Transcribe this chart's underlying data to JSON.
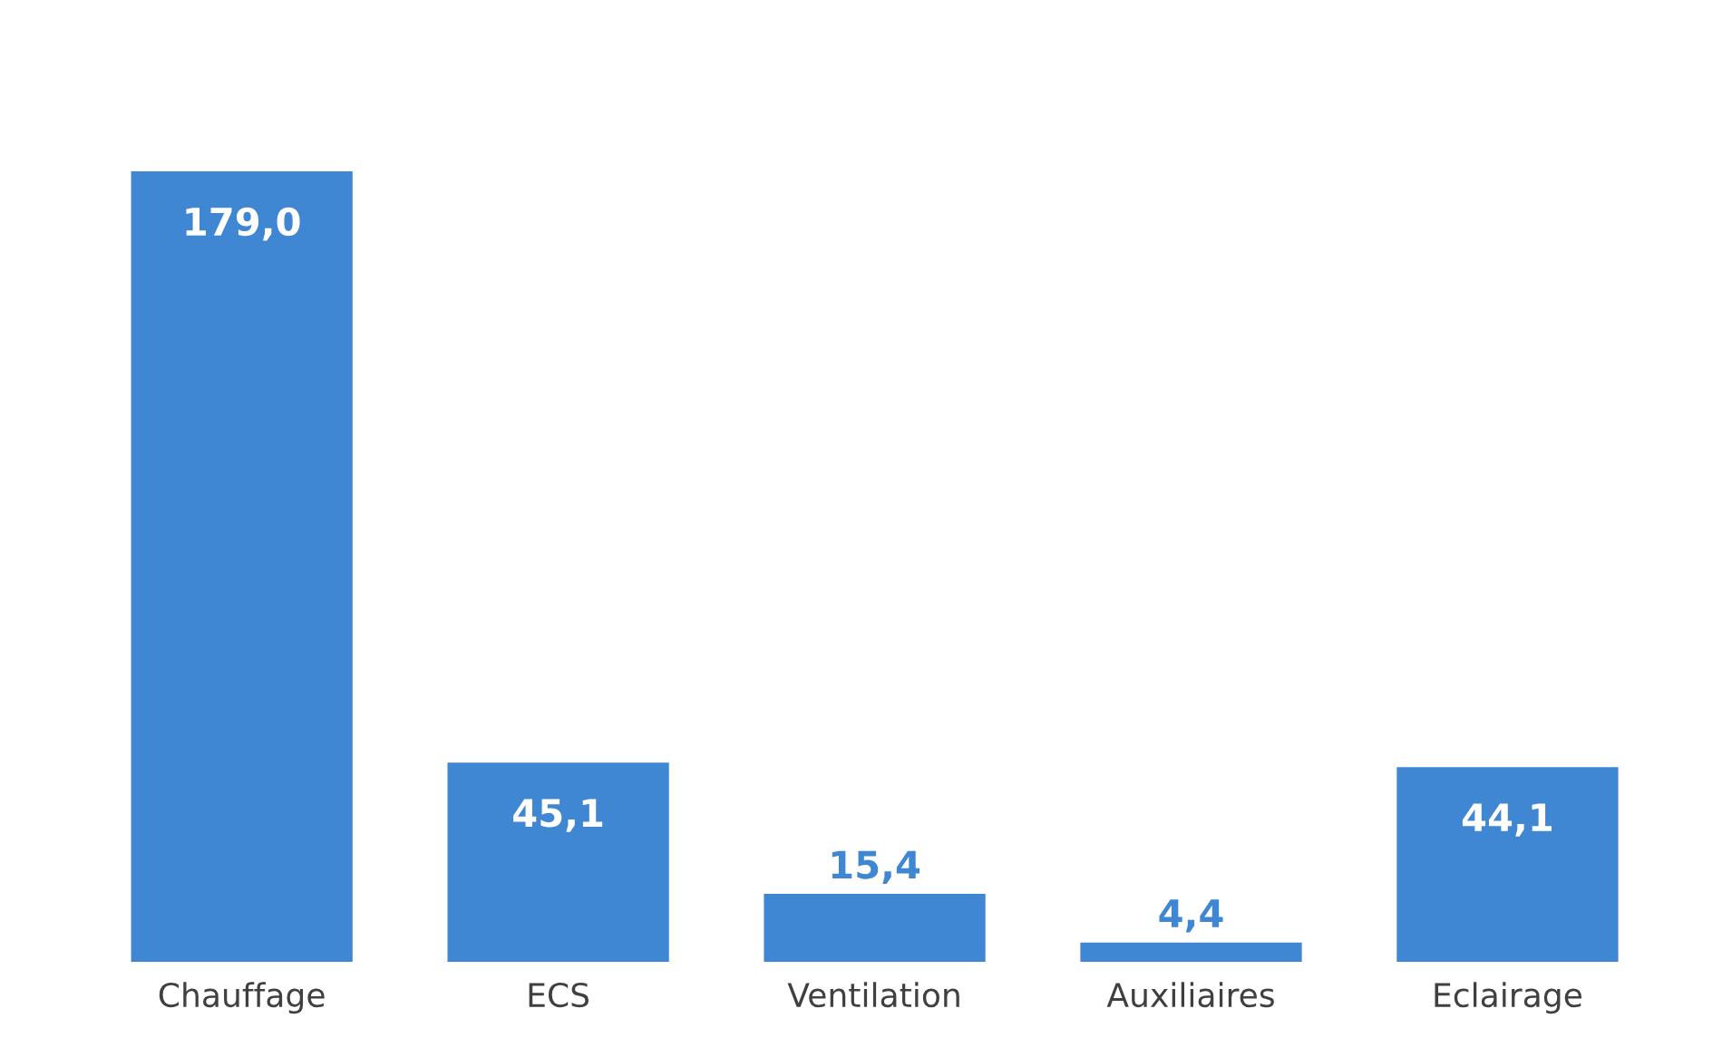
{
  "chart_data": {
    "type": "bar",
    "categories": [
      "Chauffage",
      "ECS",
      "Ventilation",
      "Auxiliaires",
      "Eclairage"
    ],
    "values": [
      179.0,
      45.1,
      15.4,
      4.4,
      44.1
    ],
    "value_labels": [
      "179,0",
      "45,1",
      "15,4",
      "4,4",
      "44,1"
    ],
    "color": "#3f87d2"
  }
}
